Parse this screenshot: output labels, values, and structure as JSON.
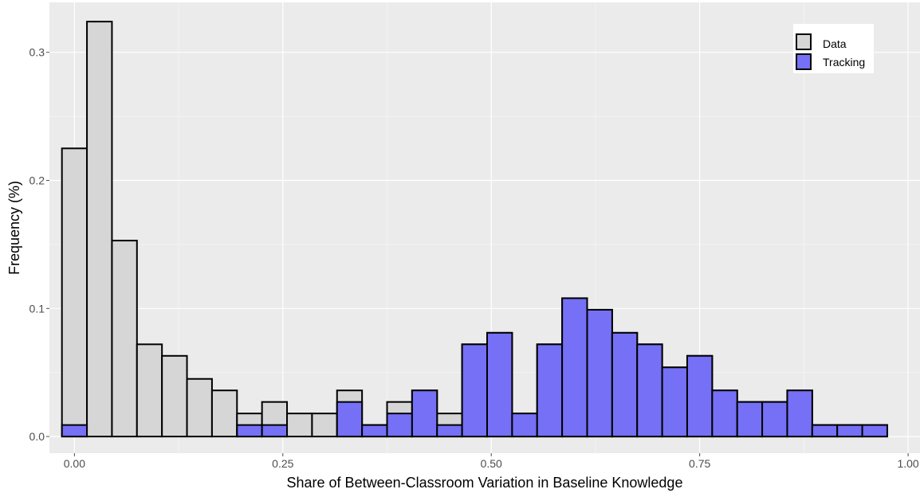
{
  "chart_data": {
    "type": "bar",
    "title": "",
    "xlabel": "Share of Between-Classroom Variation in Baseline Knowledge",
    "ylabel": "Frequency (%)",
    "xlim": [
      -0.03,
      1.02
    ],
    "ylim": [
      -0.013,
      0.339
    ],
    "x_ticks": [
      0,
      0.25,
      0.5,
      0.75,
      1.0
    ],
    "x_tick_labels": [
      "0.00",
      "0.25",
      "0.50",
      "0.75",
      "1.00"
    ],
    "y_ticks": [
      0,
      0.1,
      0.2,
      0.3
    ],
    "y_tick_labels": [
      "0.0",
      "0.1",
      "0.2",
      "0.3"
    ],
    "grid": true,
    "legend_position": "top-right",
    "bin_width": 0.03,
    "bin_start": -0.015,
    "series": [
      {
        "name": "Data",
        "color": "#d6d6d6",
        "values": [
          0.225,
          0.324,
          0.153,
          0.072,
          0.063,
          0.045,
          0.036,
          0.018,
          0.027,
          0.018,
          0.018,
          0.036,
          0.009,
          0.027,
          0.036,
          0.018,
          0.072,
          0.081,
          0.018,
          0.072,
          0.108,
          0.099,
          0.081,
          0.072,
          0.054,
          0.063,
          0.036,
          0.027,
          0.027,
          0.036,
          0.009,
          0.009,
          0.009
        ]
      },
      {
        "name": "Tracking",
        "color": "#7570f5",
        "values": [
          0.009,
          0,
          0,
          0,
          0,
          0,
          0,
          0.009,
          0.009,
          0,
          0,
          0.027,
          0.009,
          0.018,
          0.036,
          0.009,
          0.072,
          0.081,
          0.018,
          0.072,
          0.108,
          0.099,
          0.081,
          0.072,
          0.054,
          0.063,
          0.036,
          0.027,
          0.027,
          0.036,
          0.009,
          0.009,
          0.009
        ]
      }
    ]
  }
}
